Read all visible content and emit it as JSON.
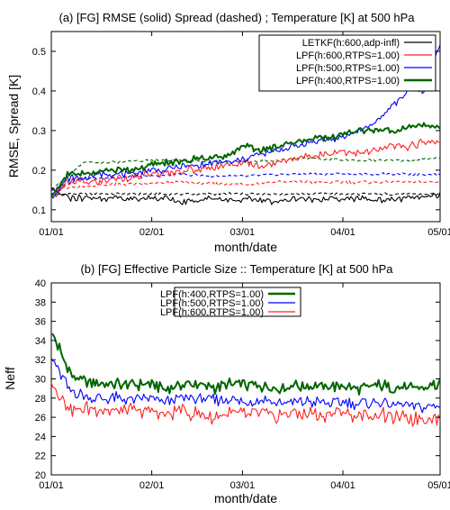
{
  "chart_data": [
    {
      "type": "line",
      "title": "(a) [FG] RMSE (solid)  Spread (dashed) ; Temperature [K] at 500 hPa",
      "xlabel": "month/date",
      "ylabel": "RMSE, Spread [K]",
      "x_ticks": [
        "01/01",
        "02/01",
        "03/01",
        "04/01",
        "05/01"
      ],
      "x_tick_days": [
        0,
        31,
        59,
        90,
        120
      ],
      "xlim": [
        0,
        120
      ],
      "ylim": [
        0.07,
        0.55
      ],
      "y_ticks": [
        "0.1",
        "0.2",
        "0.3",
        "0.4",
        "0.5"
      ],
      "grid": false,
      "legend_position": "top-right",
      "legend": [
        {
          "label": "LETKF(h:600,adp-infl)",
          "color": "#000000"
        },
        {
          "label": "LPF(h:600,RTPS=1.00)",
          "color": "#ff2020"
        },
        {
          "label": "LPF(h:500,RTPS=1.00)",
          "color": "#0000ff"
        },
        {
          "label": "LPF(h:400,RTPS=1.00)",
          "color": "#006400"
        }
      ],
      "series": [
        {
          "name": "LETKF(h:600,adp-infl)",
          "kind": "rmse",
          "style": "solid",
          "color": "#000000",
          "x": [
            0,
            5,
            10,
            15,
            20,
            25,
            30,
            35,
            40,
            45,
            50,
            55,
            60,
            65,
            70,
            75,
            80,
            85,
            90,
            95,
            100,
            105,
            110,
            115,
            120
          ],
          "y": [
            0.15,
            0.13,
            0.13,
            0.13,
            0.13,
            0.125,
            0.13,
            0.13,
            0.12,
            0.125,
            0.13,
            0.125,
            0.125,
            0.125,
            0.12,
            0.13,
            0.125,
            0.13,
            0.125,
            0.13,
            0.125,
            0.125,
            0.13,
            0.13,
            0.14
          ]
        },
        {
          "name": "LPF(h:600,RTPS=1.00)",
          "kind": "rmse",
          "style": "solid",
          "color": "#ff2020",
          "x": [
            0,
            5,
            10,
            15,
            20,
            25,
            30,
            35,
            40,
            45,
            50,
            55,
            60,
            65,
            70,
            75,
            80,
            85,
            90,
            95,
            100,
            105,
            110,
            115,
            120
          ],
          "y": [
            0.13,
            0.17,
            0.17,
            0.17,
            0.18,
            0.18,
            0.19,
            0.19,
            0.2,
            0.2,
            0.21,
            0.21,
            0.22,
            0.21,
            0.22,
            0.23,
            0.24,
            0.24,
            0.25,
            0.24,
            0.25,
            0.26,
            0.26,
            0.27,
            0.27
          ]
        },
        {
          "name": "LPF(h:500,RTPS=1.00)",
          "kind": "rmse",
          "style": "solid",
          "color": "#0000ff",
          "x": [
            0,
            5,
            10,
            15,
            20,
            25,
            30,
            35,
            40,
            45,
            50,
            55,
            60,
            65,
            70,
            75,
            80,
            85,
            90,
            95,
            100,
            105,
            110,
            115,
            120
          ],
          "y": [
            0.13,
            0.18,
            0.18,
            0.19,
            0.19,
            0.19,
            0.2,
            0.2,
            0.21,
            0.21,
            0.22,
            0.22,
            0.23,
            0.24,
            0.25,
            0.26,
            0.27,
            0.28,
            0.28,
            0.3,
            0.32,
            0.36,
            0.4,
            0.4,
            0.52
          ]
        },
        {
          "name": "LPF(h:400,RTPS=1.00)",
          "kind": "rmse",
          "style": "solid",
          "color": "#006400",
          "x": [
            0,
            5,
            10,
            15,
            20,
            25,
            30,
            35,
            40,
            45,
            50,
            55,
            60,
            65,
            70,
            75,
            80,
            85,
            90,
            95,
            100,
            105,
            110,
            115,
            120
          ],
          "y": [
            0.13,
            0.19,
            0.19,
            0.2,
            0.2,
            0.2,
            0.21,
            0.22,
            0.22,
            0.23,
            0.23,
            0.24,
            0.26,
            0.25,
            0.26,
            0.27,
            0.28,
            0.28,
            0.29,
            0.3,
            0.3,
            0.3,
            0.31,
            0.31,
            0.31
          ]
        },
        {
          "name": "LETKF(h:600,adp-infl)",
          "kind": "spread",
          "style": "dashed",
          "color": "#000000",
          "x": [
            0,
            10,
            20,
            30,
            40,
            50,
            60,
            70,
            80,
            90,
            100,
            110,
            120
          ],
          "y": [
            0.14,
            0.14,
            0.14,
            0.14,
            0.14,
            0.14,
            0.14,
            0.14,
            0.14,
            0.14,
            0.14,
            0.14,
            0.14
          ]
        },
        {
          "name": "LPF(h:600,RTPS=1.00)",
          "kind": "spread",
          "style": "dashed",
          "color": "#ff2020",
          "x": [
            0,
            10,
            20,
            30,
            40,
            50,
            60,
            70,
            80,
            90,
            100,
            110,
            120
          ],
          "y": [
            0.15,
            0.16,
            0.165,
            0.165,
            0.17,
            0.165,
            0.165,
            0.17,
            0.17,
            0.17,
            0.17,
            0.17,
            0.17
          ]
        },
        {
          "name": "LPF(h:500,RTPS=1.00)",
          "kind": "spread",
          "style": "dashed",
          "color": "#0000ff",
          "x": [
            0,
            10,
            20,
            30,
            40,
            50,
            60,
            70,
            80,
            90,
            100,
            110,
            120
          ],
          "y": [
            0.15,
            0.18,
            0.18,
            0.185,
            0.19,
            0.185,
            0.185,
            0.19,
            0.19,
            0.19,
            0.19,
            0.19,
            0.19
          ]
        },
        {
          "name": "LPF(h:400,RTPS=1.00)",
          "kind": "spread",
          "style": "dashed",
          "color": "#006400",
          "x": [
            0,
            10,
            20,
            30,
            40,
            50,
            60,
            70,
            80,
            90,
            100,
            110,
            120
          ],
          "y": [
            0.15,
            0.22,
            0.22,
            0.225,
            0.225,
            0.22,
            0.22,
            0.225,
            0.23,
            0.225,
            0.225,
            0.225,
            0.23
          ]
        }
      ]
    },
    {
      "type": "line",
      "title": "(b) [FG] Effective Particle Size :: Temperature [K] at 500 hPa",
      "xlabel": "month/date",
      "ylabel": "Neff",
      "x_ticks": [
        "01/01",
        "02/01",
        "03/01",
        "04/01",
        "05/01"
      ],
      "x_tick_days": [
        0,
        31,
        59,
        90,
        120
      ],
      "xlim": [
        0,
        120
      ],
      "ylim": [
        20,
        40
      ],
      "y_ticks": [
        "20",
        "22",
        "24",
        "26",
        "28",
        "30",
        "32",
        "34",
        "36",
        "38",
        "40"
      ],
      "grid": false,
      "legend_position": "top-center",
      "legend": [
        {
          "label": "LPF(h:400,RTPS=1.00)",
          "color": "#006400"
        },
        {
          "label": "LPF(h:500,RTPS=1.00)",
          "color": "#0000ff"
        },
        {
          "label": "LPF(h:600,RTPS=1.00)",
          "color": "#ff2020"
        }
      ],
      "series": [
        {
          "name": "LPF(h:400,RTPS=1.00)",
          "style": "solid",
          "color": "#006400",
          "x": [
            0,
            2,
            4,
            6,
            8,
            10,
            15,
            20,
            25,
            30,
            35,
            40,
            45,
            50,
            55,
            60,
            65,
            70,
            75,
            80,
            85,
            90,
            95,
            100,
            105,
            110,
            115,
            120
          ],
          "y": [
            34.8,
            33.5,
            32,
            30.5,
            30.0,
            29.7,
            29.4,
            29.5,
            29.3,
            29.5,
            29.0,
            29.4,
            29.5,
            29.0,
            29.4,
            29.4,
            29.2,
            29.0,
            29.3,
            29.2,
            29.0,
            29.3,
            29.0,
            29.3,
            29.2,
            29.0,
            29.2,
            29.4
          ]
        },
        {
          "name": "LPF(h:500,RTPS=1.00)",
          "style": "solid",
          "color": "#0000ff",
          "x": [
            0,
            2,
            4,
            6,
            8,
            10,
            15,
            20,
            25,
            30,
            35,
            40,
            45,
            50,
            55,
            60,
            65,
            70,
            75,
            80,
            85,
            90,
            95,
            100,
            105,
            110,
            115,
            120
          ],
          "y": [
            32.2,
            31.0,
            29.8,
            28.8,
            28.5,
            28.3,
            28.0,
            28.1,
            27.8,
            28.0,
            27.6,
            28.0,
            28.0,
            27.8,
            27.9,
            27.6,
            27.8,
            27.4,
            27.6,
            27.6,
            27.5,
            27.6,
            27.4,
            27.6,
            27.3,
            27.2,
            27.0,
            27.2
          ]
        },
        {
          "name": "LPF(h:600,RTPS=1.00)",
          "style": "solid",
          "color": "#ff2020",
          "x": [
            0,
            2,
            4,
            6,
            8,
            10,
            15,
            20,
            25,
            30,
            35,
            40,
            45,
            50,
            55,
            60,
            65,
            70,
            75,
            80,
            85,
            90,
            95,
            100,
            105,
            110,
            115,
            120
          ],
          "y": [
            29.8,
            28.5,
            27.5,
            26.8,
            26.8,
            26.9,
            26.8,
            26.7,
            26.6,
            26.7,
            26.4,
            26.7,
            26.3,
            26.0,
            26.4,
            26.3,
            26.4,
            26.2,
            26.5,
            26.3,
            26.2,
            26.4,
            26.2,
            26.3,
            26.0,
            25.8,
            26.0,
            26.1
          ]
        }
      ]
    }
  ],
  "colors": {
    "letkf": "#000000",
    "h600": "#ff2020",
    "h500": "#0000ff",
    "h400": "#006400"
  }
}
